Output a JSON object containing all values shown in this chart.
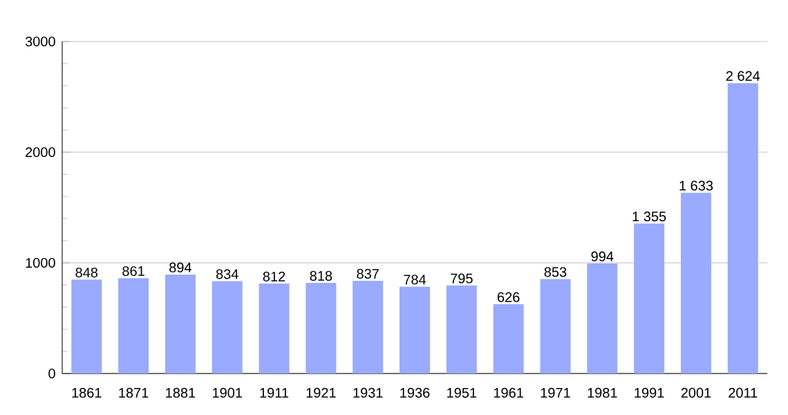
{
  "chart_data": {
    "type": "bar",
    "categories": [
      "1861",
      "1871",
      "1881",
      "1901",
      "1911",
      "1921",
      "1931",
      "1936",
      "1951",
      "1961",
      "1971",
      "1981",
      "1991",
      "2001",
      "2011"
    ],
    "values": [
      848,
      861,
      894,
      834,
      812,
      818,
      837,
      784,
      795,
      626,
      853,
      994,
      1355,
      1633,
      2624
    ],
    "value_labels": [
      "848",
      "861",
      "894",
      "834",
      "812",
      "818",
      "837",
      "784",
      "795",
      "626",
      "853",
      "994",
      "1 355",
      "1 633",
      "2 624"
    ],
    "color": "#99aaff",
    "ylim": [
      0,
      3000
    ],
    "yticks": [
      0,
      1000,
      2000,
      3000
    ],
    "grid": "y"
  }
}
